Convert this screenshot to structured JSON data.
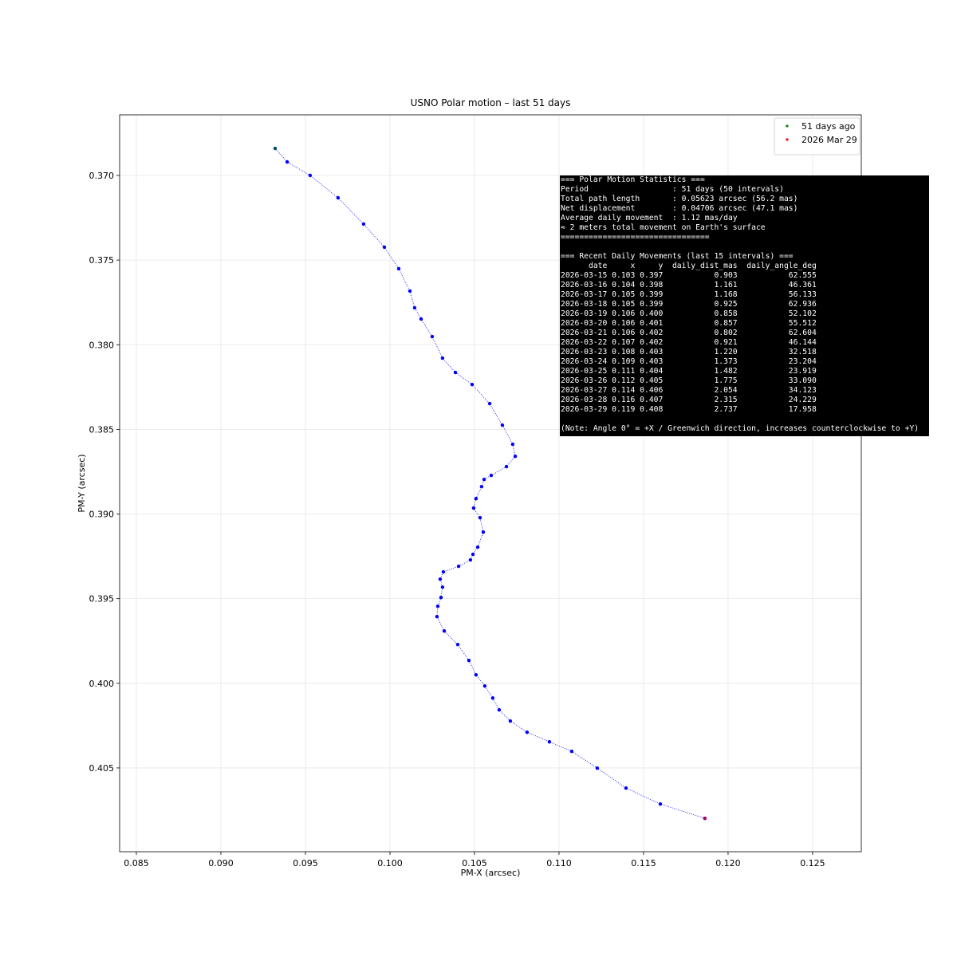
{
  "chart_data": {
    "type": "line",
    "title": "USNO Polar motion – last 51  days",
    "xlabel": "PM-X (arcsec)",
    "ylabel": "PM-Y (arcsec)",
    "color": "#0000ff",
    "x": [
      0.09321,
      0.09392,
      0.09528,
      0.09693,
      0.09844,
      0.09967,
      0.10052,
      0.10118,
      0.10146,
      0.10184,
      0.1025,
      0.10311,
      0.10387,
      0.10486,
      0.1059,
      0.10665,
      0.10726,
      0.10741,
      0.10689,
      0.10599,
      0.10557,
      0.10542,
      0.10509,
      0.10495,
      0.10533,
      0.10552,
      0.10519,
      0.10491,
      0.10476,
      0.10406,
      0.10316,
      0.10297,
      0.10311,
      0.10302,
      0.10283,
      0.10278,
      0.10321,
      0.10401,
      0.10467,
      0.10509,
      0.10561,
      0.10608,
      0.10646,
      0.10712,
      0.10811,
      0.10943,
      0.11075,
      0.11226,
      0.11396,
      0.11599,
      0.11863
    ],
    "y": [
      0.3684,
      0.3692,
      0.37,
      0.37132,
      0.37287,
      0.37424,
      0.37551,
      0.37683,
      0.37782,
      0.37848,
      0.37952,
      0.38079,
      0.38164,
      0.38235,
      0.38348,
      0.38475,
      0.38588,
      0.38659,
      0.3872,
      0.38772,
      0.38796,
      0.38838,
      0.38909,
      0.38965,
      0.39022,
      0.39107,
      0.39196,
      0.39238,
      0.39271,
      0.39309,
      0.39342,
      0.39385,
      0.39432,
      0.39493,
      0.39545,
      0.39606,
      0.39691,
      0.39771,
      0.39865,
      0.3995,
      0.40016,
      0.40087,
      0.40157,
      0.40223,
      0.40289,
      0.40346,
      0.40402,
      0.40501,
      0.40619,
      0.40713,
      0.40798
    ],
    "series": [
      {
        "name": "51 days ago",
        "color": "#008000",
        "x": [
          0.09321
        ],
        "values": [
          0.3684
        ]
      },
      {
        "name": "2026 Mar 29",
        "color": "#ff0000",
        "x": [
          0.11863
        ],
        "values": [
          0.40798
        ]
      }
    ],
    "xlim": [
      0.08401,
      0.12788
    ],
    "ylim": [
      0.40995,
      0.36642
    ],
    "xticks": [
      0.085,
      {
        "value": 0.09,
        "label": "0.090"
      },
      0.095,
      {
        "value": 0.1,
        "label": "0.100"
      },
      0.105,
      {
        "value": 0.11,
        "label": "0.110"
      },
      0.115,
      {
        "value": 0.12,
        "label": "0.120"
      },
      0.125
    ],
    "yticks": [
      {
        "value": 0.37,
        "label": "0.370"
      },
      0.375,
      {
        "value": 0.38,
        "label": "0.380"
      },
      0.385,
      {
        "value": 0.39,
        "label": "0.390"
      },
      0.395,
      {
        "value": 0.4,
        "label": "0.400"
      },
      0.405
    ],
    "grid": true,
    "legend": "upper right",
    "stats_box": {
      "summary": [
        "=== Polar Motion Statistics ===",
        "Period                  : 51 days (50 intervals)",
        "Total path length       : 0.05623 arcsec (56.2 mas)",
        "Net displacement        : 0.04706 arcsec (47.1 mas)",
        "Average daily movement  : 1.12 mas/day",
        "≈ 2 meters total movement on Earth's surface",
        "================================"
      ],
      "daily": [
        "=== Recent Daily Movements (last 15 intervals) ===",
        "      date     x     y  daily_dist_mas  daily_angle_deg",
        "2026-03-15 0.103 0.397           0.903           62.555",
        "2026-03-16 0.104 0.398           1.161           46.361",
        "2026-03-17 0.105 0.399           1.168           56.133",
        "2026-03-18 0.105 0.399           0.925           62.936",
        "2026-03-19 0.106 0.400           0.858           52.102",
        "2026-03-20 0.106 0.401           0.857           55.512",
        "2026-03-21 0.106 0.402           0.802           62.604",
        "2026-03-22 0.107 0.402           0.921           46.144",
        "2026-03-23 0.108 0.403           1.220           32.518",
        "2026-03-24 0.109 0.403           1.373           23.204",
        "2026-03-25 0.111 0.404           1.482           23.919",
        "2026-03-26 0.112 0.405           1.775           33.090",
        "2026-03-27 0.114 0.406           2.054           34.123",
        "2026-03-28 0.116 0.407           2.315           24.229",
        "2026-03-29 0.119 0.408           2.737           17.958"
      ],
      "note": "(Note: Angle 0° = +X / Greenwich direction, increases counterclockwise to +Y)"
    }
  }
}
